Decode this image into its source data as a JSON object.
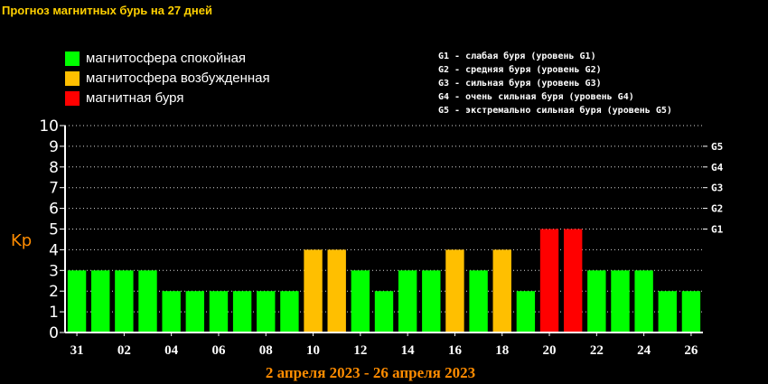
{
  "title": "Прогноз магнитных бурь на 27 дней",
  "legend": [
    {
      "label": "магнитосфера спокойная",
      "color": "#00ff00"
    },
    {
      "label": "магнитосфера возбужденная",
      "color": "#ffbf00"
    },
    {
      "label": "магнитная буря",
      "color": "#ff0000"
    }
  ],
  "g_levels": [
    "G1 - слабая буря (уровень G1)",
    "G2 - средняя буря (уровень G2)",
    "G3 - сильная буря (уровень G3)",
    "G4 - очень сильная буря (уровень G4)",
    "G5 - экстремально сильная буря (уровень G5)"
  ],
  "date_range": "2 апреля 2023 - 26 апреля 2023",
  "chart_data": {
    "type": "bar",
    "ylabel": "Kp",
    "ylim": [
      0,
      10
    ],
    "yticks": [
      0,
      1,
      2,
      3,
      4,
      5,
      6,
      7,
      8,
      9,
      10
    ],
    "right_ticks": [
      {
        "value": 5,
        "label": "G1"
      },
      {
        "value": 6,
        "label": "G2"
      },
      {
        "value": 7,
        "label": "G3"
      },
      {
        "value": 8,
        "label": "G4"
      },
      {
        "value": 9,
        "label": "G5"
      }
    ],
    "x_tick_labels": [
      "31",
      "02",
      "04",
      "06",
      "08",
      "10",
      "12",
      "14",
      "16",
      "18",
      "20",
      "22",
      "24",
      "26"
    ],
    "values": [
      3,
      3,
      3,
      3,
      2,
      2,
      2,
      2,
      2,
      2,
      4,
      4,
      3,
      2,
      3,
      3,
      4,
      3,
      4,
      2,
      5,
      5,
      3,
      3,
      3,
      2,
      2
    ],
    "colors": {
      "calm": "#00ff00",
      "excited": "#ffbf00",
      "storm": "#ff0000"
    },
    "grid": true
  }
}
